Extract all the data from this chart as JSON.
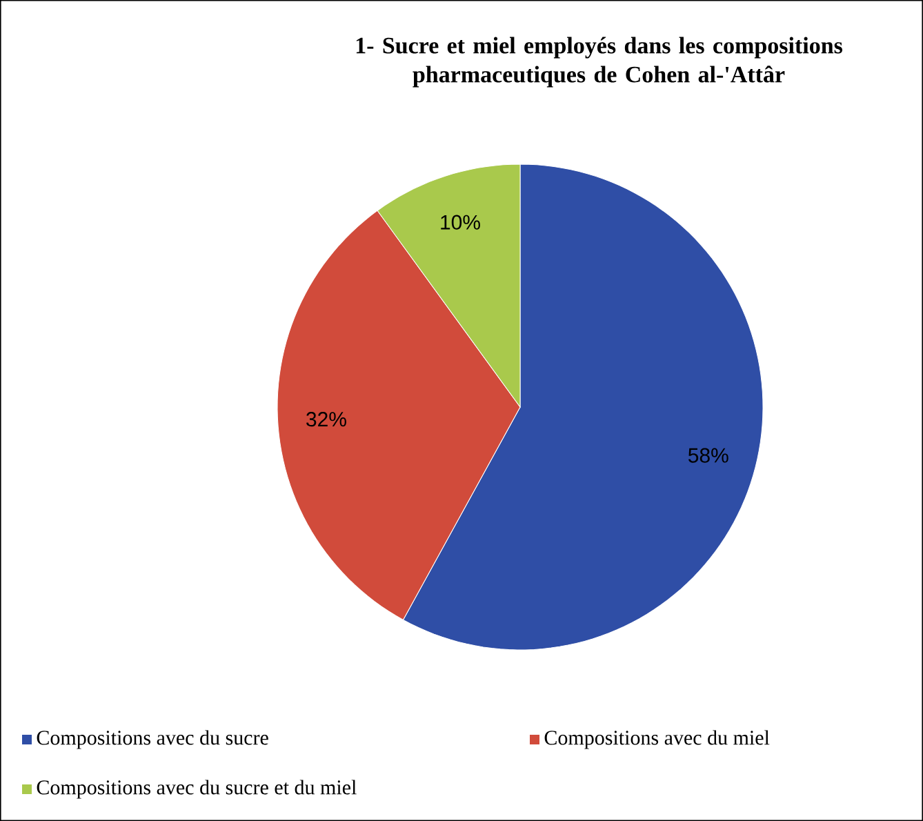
{
  "chart_data": {
    "type": "pie",
    "title": "1- Sucre et miel employés dans les compositions pharmaceutiques de Cohen al-'Attâr",
    "categories": [
      "Compositions avec du sucre",
      "Compositions avec du miel",
      "Compositions avec du sucre et du miel"
    ],
    "values": [
      58,
      32,
      10
    ],
    "colors": [
      "#2f4ea6",
      "#d14b3b",
      "#a9c94c"
    ],
    "value_labels": [
      "58%",
      "32%",
      "10%"
    ],
    "legend": "bottom"
  }
}
